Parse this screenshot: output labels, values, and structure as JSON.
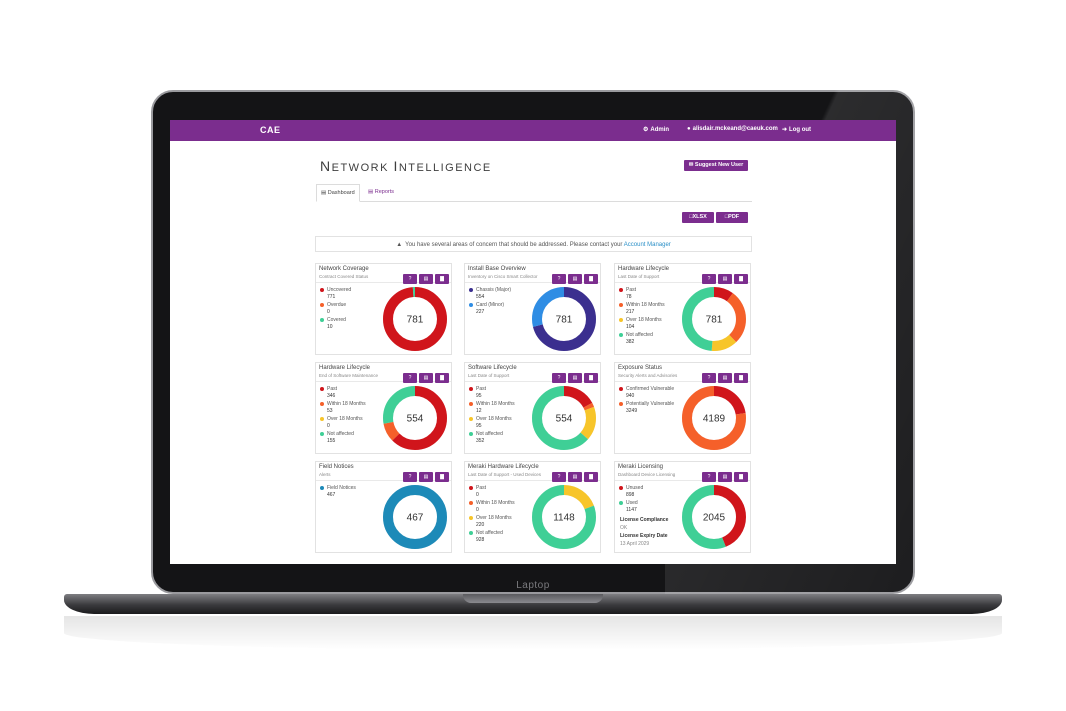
{
  "laptop_label": "Laptop",
  "nav": {
    "brand": "CAE",
    "admin": "Admin",
    "user": "alisdair.mckeand@caeuk.com",
    "logout": "Log out"
  },
  "header": {
    "title_first": "N",
    "title_rest_1": "ETWORK ",
    "title_second": "I",
    "title_rest_2": "NTELLIGENCE",
    "suggest_button": "Suggest New User"
  },
  "tabs": [
    {
      "label": "Dashboard",
      "active": true
    },
    {
      "label": "Reports",
      "active": false
    }
  ],
  "export": {
    "xlsx": "XLSX",
    "pdf": "PDF"
  },
  "alert": {
    "text": "You have several areas of concern that should be addressed. Please contact your",
    "link": "Account Manager"
  },
  "colors": {
    "accent": "#7b2d8e",
    "red": "#d0151b",
    "orange": "#f5602a",
    "yellow": "#f7c52a",
    "green": "#3fcf96",
    "navy": "#3b2f8f",
    "blue": "#2f8de4",
    "teal": "#1d8ab8"
  },
  "cards": [
    {
      "title": "Network Coverage",
      "subtitle": "Contract Covered Status",
      "total": "781",
      "legend": [
        {
          "label": "Uncovered",
          "value": "771",
          "color": "#d0151b"
        },
        {
          "label": "Overdue",
          "value": "0",
          "color": "#f5602a"
        },
        {
          "label": "Covered",
          "value": "10",
          "color": "#3fcf96"
        }
      ],
      "segments": [
        771,
        0,
        10
      ]
    },
    {
      "title": "Install Base Overview",
      "subtitle": "Inventory on Cisco Smart Collector",
      "total": "781",
      "legend": [
        {
          "label": "Chassis (Major)",
          "value": "554",
          "color": "#3b2f8f"
        },
        {
          "label": "Card (Minor)",
          "value": "227",
          "color": "#2f8de4"
        }
      ],
      "segments": [
        554,
        227
      ]
    },
    {
      "title": "Hardware Lifecycle",
      "subtitle": "Last Date of Support",
      "total": "781",
      "legend": [
        {
          "label": "Past",
          "value": "78",
          "color": "#d0151b"
        },
        {
          "label": "Within 18 Months",
          "value": "217",
          "color": "#f5602a"
        },
        {
          "label": "Over 18 Months",
          "value": "104",
          "color": "#f7c52a"
        },
        {
          "label": "Not affected",
          "value": "382",
          "color": "#3fcf96"
        }
      ],
      "segments": [
        78,
        217,
        104,
        382
      ]
    },
    {
      "title": "Hardware Lifecycle",
      "subtitle": "End of Software Maintenance",
      "total": "554",
      "legend": [
        {
          "label": "Past",
          "value": "346",
          "color": "#d0151b"
        },
        {
          "label": "Within 18 Months",
          "value": "53",
          "color": "#f5602a"
        },
        {
          "label": "Over 18 Months",
          "value": "0",
          "color": "#f7c52a"
        },
        {
          "label": "Not affected",
          "value": "155",
          "color": "#3fcf96"
        }
      ],
      "segments": [
        346,
        53,
        0,
        155
      ]
    },
    {
      "title": "Software Lifecycle",
      "subtitle": "Last Date of Support",
      "total": "554",
      "legend": [
        {
          "label": "Past",
          "value": "95",
          "color": "#d0151b"
        },
        {
          "label": "Within 18 Months",
          "value": "12",
          "color": "#f5602a"
        },
        {
          "label": "Over 18 Months",
          "value": "95",
          "color": "#f7c52a"
        },
        {
          "label": "Not affected",
          "value": "352",
          "color": "#3fcf96"
        }
      ],
      "segments": [
        95,
        12,
        95,
        352
      ]
    },
    {
      "title": "Exposure Status",
      "subtitle": "Security Alerts and Advisories",
      "total": "4189",
      "legend": [
        {
          "label": "Confirmed Vulnerable",
          "value": "940",
          "color": "#d0151b"
        },
        {
          "label": "Potentially Vulnerable",
          "value": "3249",
          "color": "#f5602a"
        }
      ],
      "segments": [
        940,
        3249
      ]
    },
    {
      "title": "Field Notices",
      "subtitle": "Alerts",
      "total": "467",
      "legend": [
        {
          "label": "Field Notices",
          "value": "467",
          "color": "#1d8ab8"
        }
      ],
      "segments": [
        467
      ]
    },
    {
      "title": "Meraki Hardware Lifecycle",
      "subtitle": "Last Date of Support - Used Devices",
      "total": "1148",
      "legend": [
        {
          "label": "Past",
          "value": "0",
          "color": "#d0151b"
        },
        {
          "label": "Within 18 Months",
          "value": "0",
          "color": "#f5602a"
        },
        {
          "label": "Over 18 Months",
          "value": "220",
          "color": "#f7c52a"
        },
        {
          "label": "Not affected",
          "value": "928",
          "color": "#3fcf96"
        }
      ],
      "segments": [
        0,
        0,
        220,
        928
      ]
    },
    {
      "title": "Meraki Licensing",
      "subtitle": "Dashboard Device Licensing",
      "total": "2045",
      "legend": [
        {
          "label": "Unused",
          "value": "898",
          "color": "#d0151b"
        },
        {
          "label": "Used",
          "value": "1147",
          "color": "#3fcf96"
        }
      ],
      "segments": [
        898,
        1147
      ],
      "extra": [
        {
          "text": "License Compliance",
          "style": "b"
        },
        {
          "text": "OK",
          "style": "g"
        },
        {
          "text": "License Expiry Date",
          "style": "b"
        },
        {
          "text": "13 April 2029",
          "style": "g"
        }
      ]
    }
  ]
}
